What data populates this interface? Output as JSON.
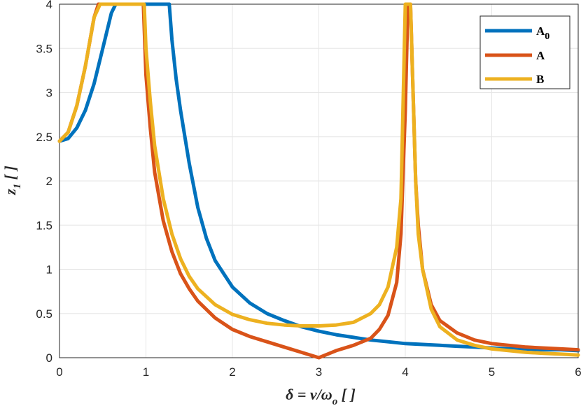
{
  "chart_data": {
    "type": "line",
    "xlabel": "δ = ν/ω_o  [ ]",
    "ylabel": "z_1 [ ]",
    "xlim": [
      0,
      6
    ],
    "ylim": [
      0,
      4
    ],
    "xticks": [
      "0",
      "1",
      "2",
      "3",
      "4",
      "5",
      "6"
    ],
    "yticks": [
      "0",
      "0.5",
      "1",
      "1.5",
      "2",
      "2.5",
      "3",
      "3.5",
      "4"
    ],
    "grid": true,
    "legend_position": "top-right",
    "series": [
      {
        "name": "A0",
        "color": "#0072BD",
        "x": [
          0,
          0.1,
          0.2,
          0.3,
          0.4,
          0.5,
          0.6,
          0.65,
          1.27,
          1.3,
          1.35,
          1.4,
          1.5,
          1.6,
          1.7,
          1.8,
          2.0,
          2.2,
          2.4,
          2.6,
          2.8,
          3.0,
          3.2,
          3.4,
          3.6,
          3.8,
          4.0,
          4.2,
          4.4,
          4.6,
          4.8,
          5.0,
          5.2,
          5.4,
          5.6,
          5.8,
          6.0
        ],
        "y": [
          2.45,
          2.48,
          2.6,
          2.8,
          3.1,
          3.5,
          3.9,
          4.0,
          4.0,
          3.6,
          3.15,
          2.8,
          2.2,
          1.7,
          1.35,
          1.1,
          0.8,
          0.62,
          0.5,
          0.42,
          0.35,
          0.3,
          0.26,
          0.23,
          0.2,
          0.18,
          0.16,
          0.15,
          0.14,
          0.13,
          0.12,
          0.11,
          0.1,
          0.1,
          0.09,
          0.09,
          0.08
        ]
      },
      {
        "name": "A",
        "color": "#D95319",
        "x": [
          0,
          0.1,
          0.2,
          0.3,
          0.4,
          0.45,
          0.97,
          1.0,
          1.05,
          1.1,
          1.2,
          1.3,
          1.4,
          1.5,
          1.6,
          1.8,
          2.0,
          2.2,
          2.4,
          2.6,
          2.8,
          3.0,
          3.2,
          3.4,
          3.6,
          3.7,
          3.8,
          3.9,
          3.95,
          4.0,
          4.03,
          4.06,
          4.09,
          4.12,
          4.15,
          4.2,
          4.3,
          4.4,
          4.6,
          4.8,
          5.0,
          5.2,
          5.4,
          5.6,
          5.8,
          6.0
        ],
        "y": [
          2.45,
          2.55,
          2.85,
          3.3,
          3.85,
          4.0,
          4.0,
          3.2,
          2.6,
          2.1,
          1.55,
          1.2,
          0.95,
          0.78,
          0.64,
          0.45,
          0.32,
          0.24,
          0.18,
          0.12,
          0.06,
          0.0,
          0.08,
          0.14,
          0.22,
          0.32,
          0.48,
          0.85,
          1.4,
          2.8,
          4.0,
          4.0,
          3.0,
          2.0,
          1.5,
          1.0,
          0.6,
          0.42,
          0.28,
          0.2,
          0.16,
          0.14,
          0.12,
          0.11,
          0.1,
          0.09
        ]
      },
      {
        "name": "B",
        "color": "#EDB120",
        "x": [
          0,
          0.1,
          0.2,
          0.3,
          0.4,
          0.47,
          0.98,
          1.0,
          1.05,
          1.1,
          1.2,
          1.3,
          1.4,
          1.5,
          1.6,
          1.8,
          2.0,
          2.2,
          2.4,
          2.6,
          2.8,
          3.0,
          3.2,
          3.4,
          3.6,
          3.7,
          3.8,
          3.9,
          3.95,
          4.0,
          4.06,
          4.09,
          4.12,
          4.15,
          4.2,
          4.3,
          4.4,
          4.6,
          4.8,
          5.0,
          5.2,
          5.4,
          5.6,
          5.8,
          6.0
        ],
        "y": [
          2.45,
          2.55,
          2.85,
          3.3,
          3.85,
          4.0,
          4.0,
          3.5,
          2.9,
          2.4,
          1.8,
          1.4,
          1.12,
          0.92,
          0.78,
          0.6,
          0.49,
          0.43,
          0.39,
          0.37,
          0.36,
          0.36,
          0.37,
          0.4,
          0.5,
          0.6,
          0.8,
          1.25,
          1.8,
          4.0,
          4.0,
          3.0,
          2.0,
          1.4,
          1.0,
          0.55,
          0.35,
          0.2,
          0.14,
          0.1,
          0.08,
          0.06,
          0.05,
          0.04,
          0.03
        ]
      }
    ]
  },
  "legend": {
    "a0_main": "A",
    "a0_sub": "0",
    "a_label": "A",
    "b_label": "B"
  },
  "axes": {
    "ylabel_main": "z",
    "ylabel_sub": "1",
    "ylabel_unit": " [ ]",
    "xlabel_main": "δ = ν/ω",
    "xlabel_sub": "o",
    "xlabel_unit": " [ ]"
  }
}
